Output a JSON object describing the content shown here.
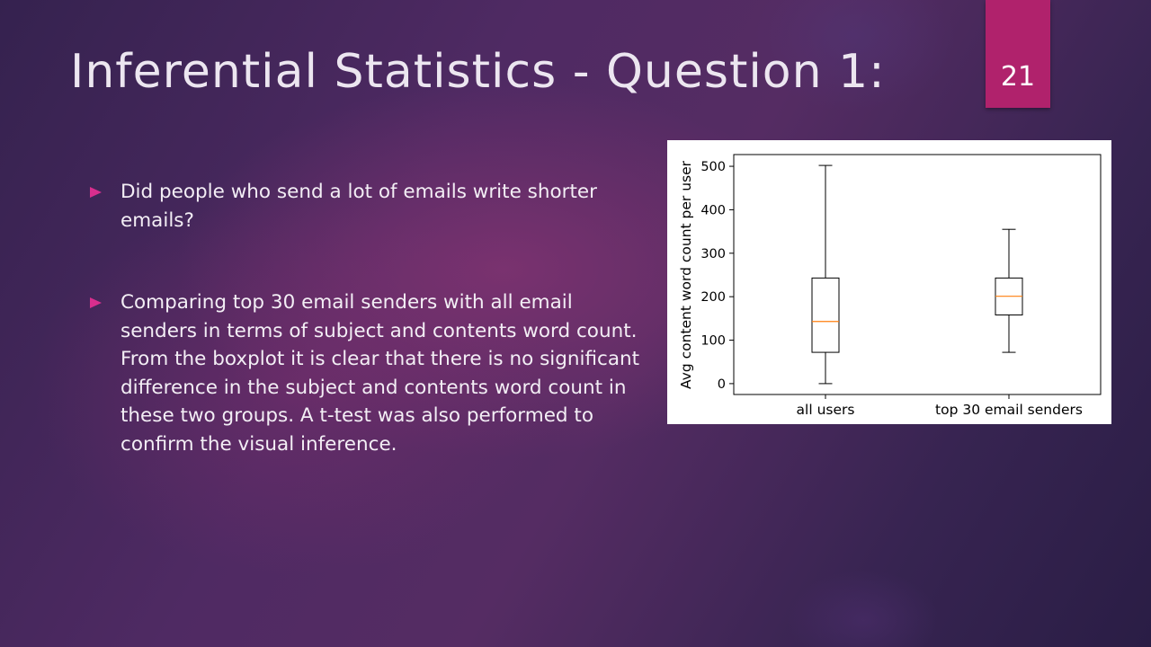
{
  "slide": {
    "title": "Inferential Statistics - Question 1:",
    "number": "21",
    "colors": {
      "accent": "#b0226c",
      "bullet": "#d92e8e",
      "text": "#f3eef5"
    },
    "bullets": [
      "Did people who send a lot of emails write shorter emails?",
      "Comparing top 30 email senders with all email senders in terms of subject and contents word count. From the boxplot it is clear that there is no significant difference in the subject and contents word count in these two groups. A t-test was also performed to confirm the visual inference."
    ]
  },
  "chart_data": {
    "type": "boxplot",
    "title": "",
    "xlabel": "",
    "ylabel": "Avg content word count per user",
    "categories": [
      "all users",
      "top 30 email senders"
    ],
    "boxes": [
      {
        "whisker_low": 0,
        "q1": 72,
        "median": 143,
        "q3": 243,
        "whisker_high": 502
      },
      {
        "whisker_low": 72,
        "q1": 158,
        "median": 201,
        "q3": 243,
        "whisker_high": 355
      }
    ],
    "yticks": [
      0,
      100,
      200,
      300,
      400,
      500
    ],
    "ylim": [
      -25,
      527
    ],
    "grid": false,
    "colors": {
      "box": "#000000",
      "median": "#ff7f0e"
    }
  }
}
